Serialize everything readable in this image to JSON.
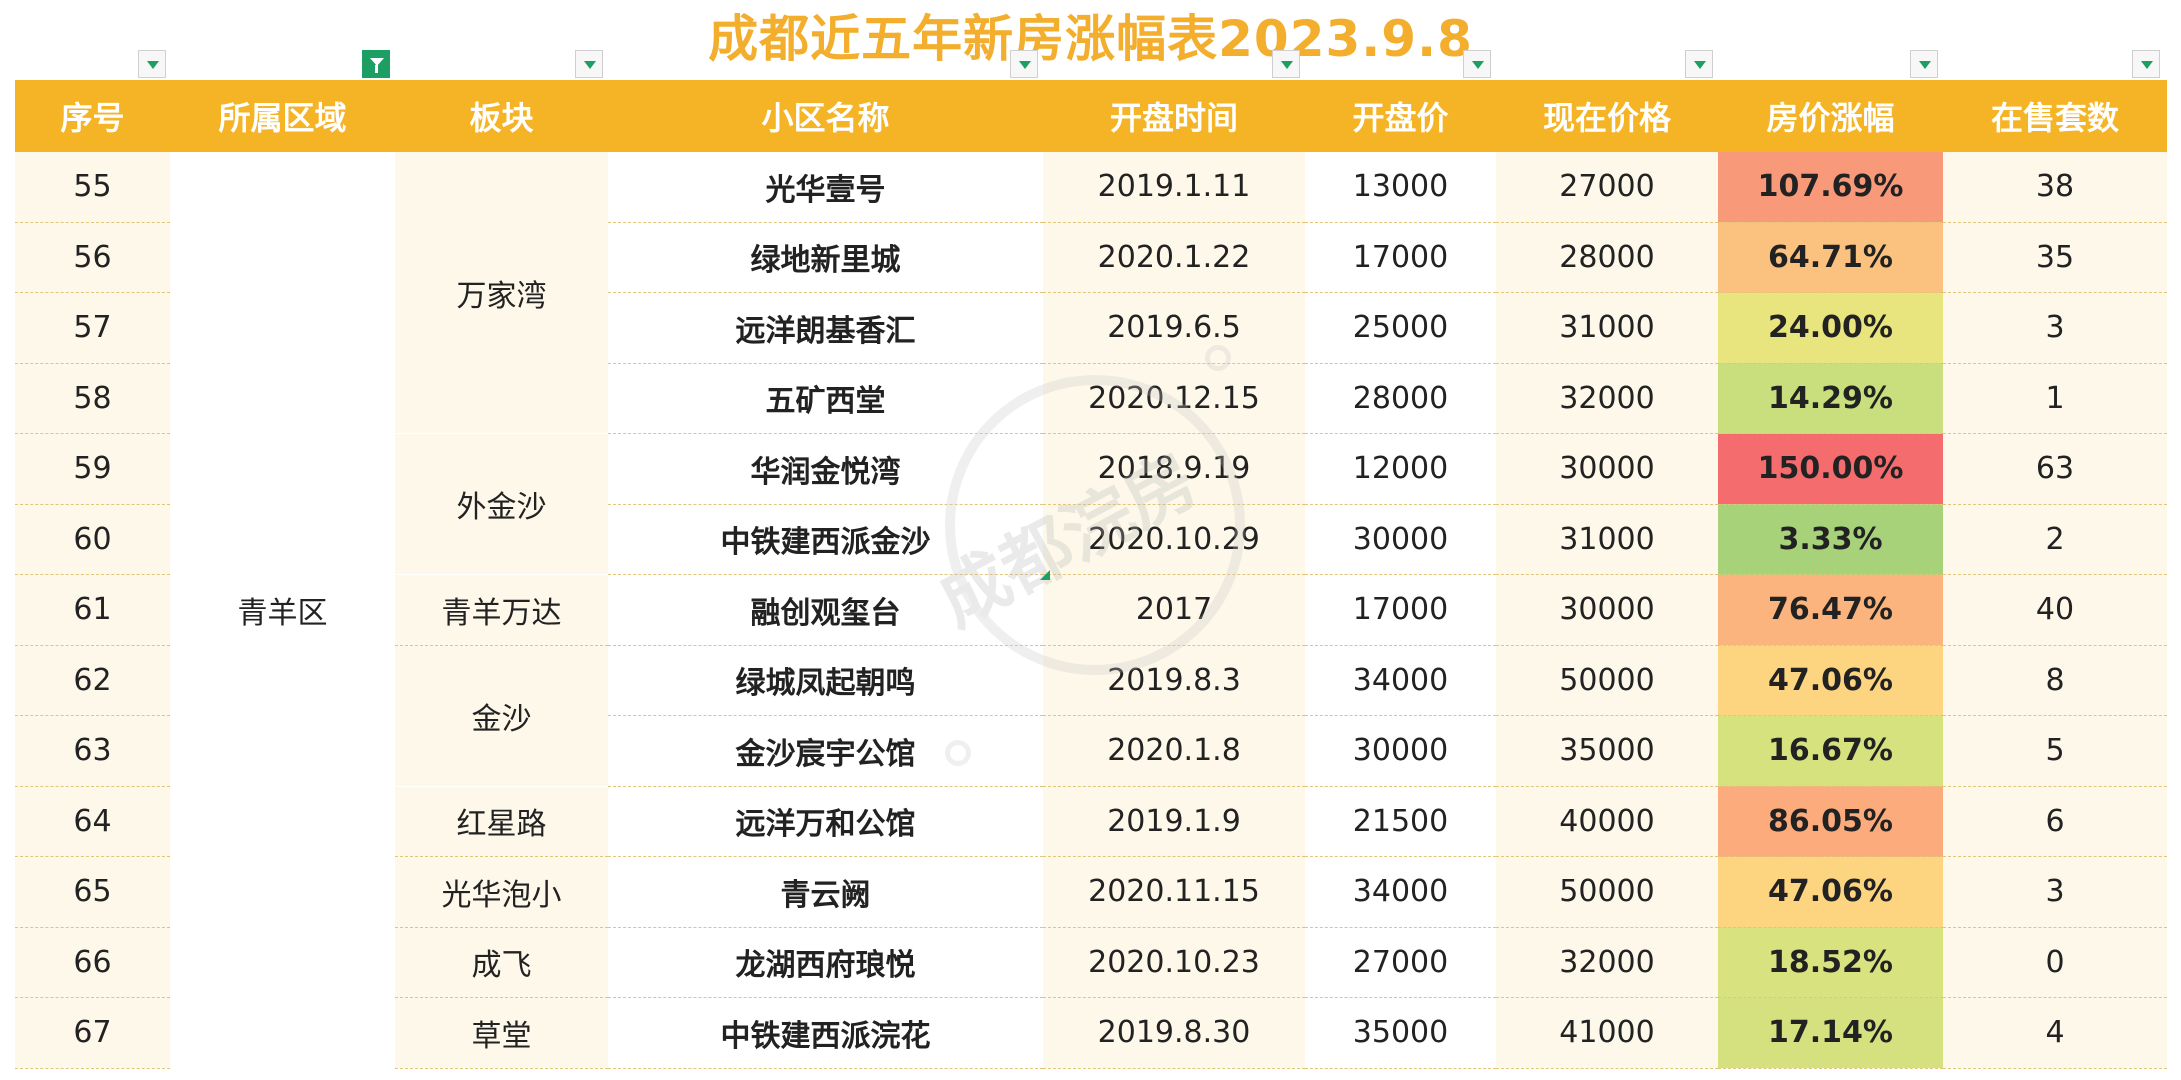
{
  "title": "成都近五年新房涨幅表2023.9.8",
  "watermark": "成都浣房",
  "headers": [
    "序号",
    "所属区域",
    "板块",
    "小区名称",
    "开盘时间",
    "开盘价",
    "现在价格",
    "房价涨幅",
    "在售套数"
  ],
  "district": "青羊区",
  "sections": [
    "万家湾",
    "外金沙",
    "青羊万达",
    "金沙",
    "红星路",
    "光华泡小",
    "成飞",
    "草堂"
  ],
  "rows": [
    {
      "no": "55",
      "name": "光华壹号",
      "open": "2019.1.11",
      "open_price": "13000",
      "now_price": "27000",
      "rise": "107.69%",
      "rise_color": "#f89a7a",
      "stock": "38"
    },
    {
      "no": "56",
      "name": "绿地新里城",
      "open": "2020.1.22",
      "open_price": "17000",
      "now_price": "28000",
      "rise": "64.71%",
      "rise_color": "#fbc27f",
      "stock": "35"
    },
    {
      "no": "57",
      "name": "远洋朗基香汇",
      "open": "2019.6.5",
      "open_price": "25000",
      "now_price": "31000",
      "rise": "24.00%",
      "rise_color": "#e8e57f",
      "stock": "3"
    },
    {
      "no": "58",
      "name": "五矿西堂",
      "open": "2020.12.15",
      "open_price": "28000",
      "now_price": "32000",
      "rise": "14.29%",
      "rise_color": "#c9df7d",
      "stock": "1"
    },
    {
      "no": "59",
      "name": "华润金悦湾",
      "open": "2018.9.19",
      "open_price": "12000",
      "now_price": "30000",
      "rise": "150.00%",
      "rise_color": "#f56c6e",
      "stock": "63"
    },
    {
      "no": "60",
      "name": "中铁建西派金沙",
      "open": "2020.10.29",
      "open_price": "30000",
      "now_price": "31000",
      "rise": "3.33%",
      "rise_color": "#a8d27a",
      "stock": "2"
    },
    {
      "no": "61",
      "name": "融创观玺台",
      "open": "2017",
      "open_price": "17000",
      "now_price": "30000",
      "rise": "76.47%",
      "rise_color": "#fbb47d",
      "stock": "40"
    },
    {
      "no": "62",
      "name": "绿城凤起朝鸣",
      "open": "2019.8.3",
      "open_price": "34000",
      "now_price": "50000",
      "rise": "47.06%",
      "rise_color": "#fdd480",
      "stock": "8"
    },
    {
      "no": "63",
      "name": "金沙宸宇公馆",
      "open": "2020.1.8",
      "open_price": "30000",
      "now_price": "35000",
      "rise": "16.67%",
      "rise_color": "#d6e27e",
      "stock": "5"
    },
    {
      "no": "64",
      "name": "远洋万和公馆",
      "open": "2019.1.9",
      "open_price": "21500",
      "now_price": "40000",
      "rise": "86.05%",
      "rise_color": "#fbab7c",
      "stock": "6"
    },
    {
      "no": "65",
      "name": "青云阙",
      "open": "2020.11.15",
      "open_price": "34000",
      "now_price": "50000",
      "rise": "47.06%",
      "rise_color": "#fdd480",
      "stock": "3"
    },
    {
      "no": "66",
      "name": "龙湖西府琅悦",
      "open": "2020.10.23",
      "open_price": "27000",
      "now_price": "32000",
      "rise": "18.52%",
      "rise_color": "#d8e27e",
      "stock": "0"
    },
    {
      "no": "67",
      "name": "中铁建西派浣花",
      "open": "2019.8.30",
      "open_price": "35000",
      "now_price": "41000",
      "rise": "17.14%",
      "rise_color": "#d4e17e",
      "stock": "4"
    }
  ],
  "colors": {
    "header_bg": "#f5b326",
    "title": "#f2ae2c",
    "filter_active": "#1d9e63"
  }
}
